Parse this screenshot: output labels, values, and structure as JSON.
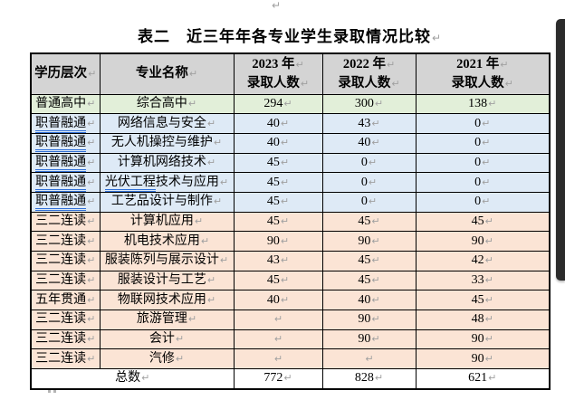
{
  "page": {
    "title": "表二　近三年年各专业学生录取情况比较",
    "pilcrow": "↵"
  },
  "colors": {
    "header_bg": "#d4d4d4",
    "green_bg": "#e2efd9",
    "blue_bg": "#deeaf6",
    "peach_bg": "#fbe4d5",
    "white_bg": "#ffffff",
    "border": "#000000",
    "pilcrow": "#a0a0a0",
    "grammar_underline": "#2f6fd6",
    "scrollbar_thumb": "#2b2b2b"
  },
  "table": {
    "headers": {
      "level": "学历层次",
      "major": "专业名称",
      "y2023_line1": "2023 年",
      "y2023_line2": "录取人数",
      "y2022_line1": "2022 年",
      "y2022_line2": "录取人数",
      "y2021_line1": "2021 年",
      "y2021_line2": "录取人数"
    },
    "rows": [
      {
        "level": "普通高中",
        "major": "综合高中",
        "v2023": "294",
        "v2022": "300",
        "v2021": "138",
        "bg": "green_bg",
        "level_underlined": false,
        "major_ul_prefix": "",
        "major_rest": "综合高中"
      },
      {
        "level": "职普融通",
        "major": "网络信息与安全",
        "v2023": "40",
        "v2022": "43",
        "v2021": "0",
        "bg": "blue_bg",
        "level_underlined": true,
        "major_ul_prefix": "",
        "major_rest": "网络信息与安全"
      },
      {
        "level": "职普融通",
        "major": "无人机操控与维护",
        "v2023": "40",
        "v2022": "40",
        "v2021": "0",
        "bg": "blue_bg",
        "level_underlined": true,
        "major_ul_prefix": "",
        "major_rest": "无人机操控与维护"
      },
      {
        "level": "职普融通",
        "major": "计算机网络技术",
        "v2023": "45",
        "v2022": "0",
        "v2021": "0",
        "bg": "blue_bg",
        "level_underlined": true,
        "major_ul_prefix": "",
        "major_rest": "计算机网络技术"
      },
      {
        "level": "职普融通",
        "major": "光伏工程技术与应用",
        "v2023": "45",
        "v2022": "0",
        "v2021": "0",
        "bg": "blue_bg",
        "level_underlined": true,
        "major_ul_prefix": "光伏工程",
        "major_rest": "技术与应用"
      },
      {
        "level": "职普融通",
        "major": "工艺品设计与制作",
        "v2023": "45",
        "v2022": "0",
        "v2021": "0",
        "bg": "blue_bg",
        "level_underlined": true,
        "major_ul_prefix": "",
        "major_rest": "工艺品设计与制作"
      },
      {
        "level": "三二连读",
        "major": "计算机应用",
        "v2023": "45",
        "v2022": "45",
        "v2021": "45",
        "bg": "peach_bg",
        "level_underlined": false,
        "major_ul_prefix": "",
        "major_rest": "计算机应用"
      },
      {
        "level": "三二连读",
        "major": "机电技术应用",
        "v2023": "90",
        "v2022": "90",
        "v2021": "90",
        "bg": "peach_bg",
        "level_underlined": false,
        "major_ul_prefix": "",
        "major_rest": "机电技术应用"
      },
      {
        "level": "三二连读",
        "major": "服装陈列与展示设计",
        "v2023": "43",
        "v2022": "45",
        "v2021": "42",
        "bg": "peach_bg",
        "level_underlined": false,
        "major_ul_prefix": "",
        "major_rest": "服装陈列与展示设计"
      },
      {
        "level": "三二连读",
        "major": "服装设计与工艺",
        "v2023": "45",
        "v2022": "45",
        "v2021": "33",
        "bg": "peach_bg",
        "level_underlined": false,
        "major_ul_prefix": "",
        "major_rest": "服装设计与工艺"
      },
      {
        "level": "五年贯通",
        "major": "物联网技术应用",
        "v2023": "40",
        "v2022": "40",
        "v2021": "45",
        "bg": "peach_bg",
        "level_underlined": false,
        "major_ul_prefix": "",
        "major_rest": "物联网技术应用"
      },
      {
        "level": "三二连读",
        "major": "旅游管理",
        "v2023": "",
        "v2022": "90",
        "v2021": "48",
        "bg": "peach_bg",
        "level_underlined": false,
        "major_ul_prefix": "",
        "major_rest": "旅游管理"
      },
      {
        "level": "三二连读",
        "major": "会计",
        "v2023": "",
        "v2022": "90",
        "v2021": "90",
        "bg": "peach_bg",
        "level_underlined": false,
        "major_ul_prefix": "",
        "major_rest": "会计"
      },
      {
        "level": "三二连读",
        "major": "汽修",
        "v2023": "",
        "v2022": "",
        "v2021": "90",
        "bg": "peach_bg",
        "level_underlined": false,
        "major_ul_prefix": "",
        "major_rest": "汽修"
      }
    ],
    "total": {
      "label": "总数",
      "v2023": "772",
      "v2022": "828",
      "v2021": "621"
    }
  }
}
